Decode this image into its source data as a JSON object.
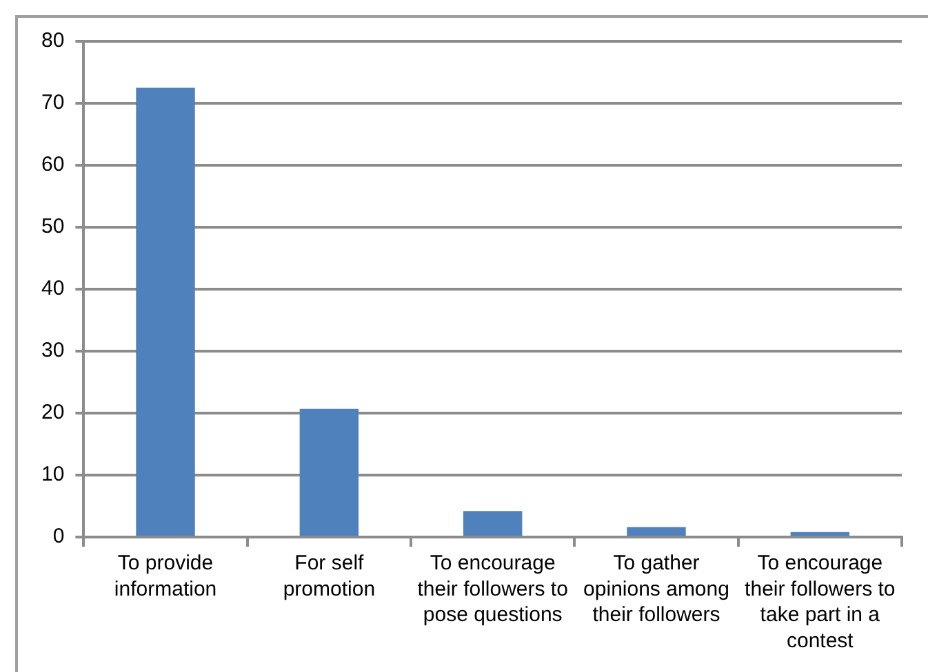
{
  "chart_data": {
    "type": "bar",
    "categories": [
      "To provide information",
      "For self promotion",
      "To encourage their followers to pose questions",
      "To gather opinions among their followers",
      "To encourage their followers to take part in a contest"
    ],
    "values": [
      72.5,
      20.7,
      4.2,
      1.6,
      0.8
    ],
    "color": "#4f81bd",
    "ylim": [
      0,
      80
    ],
    "yticks": [
      0,
      10,
      20,
      30,
      40,
      50,
      60,
      70,
      80
    ],
    "grid": "y",
    "legend": false
  }
}
